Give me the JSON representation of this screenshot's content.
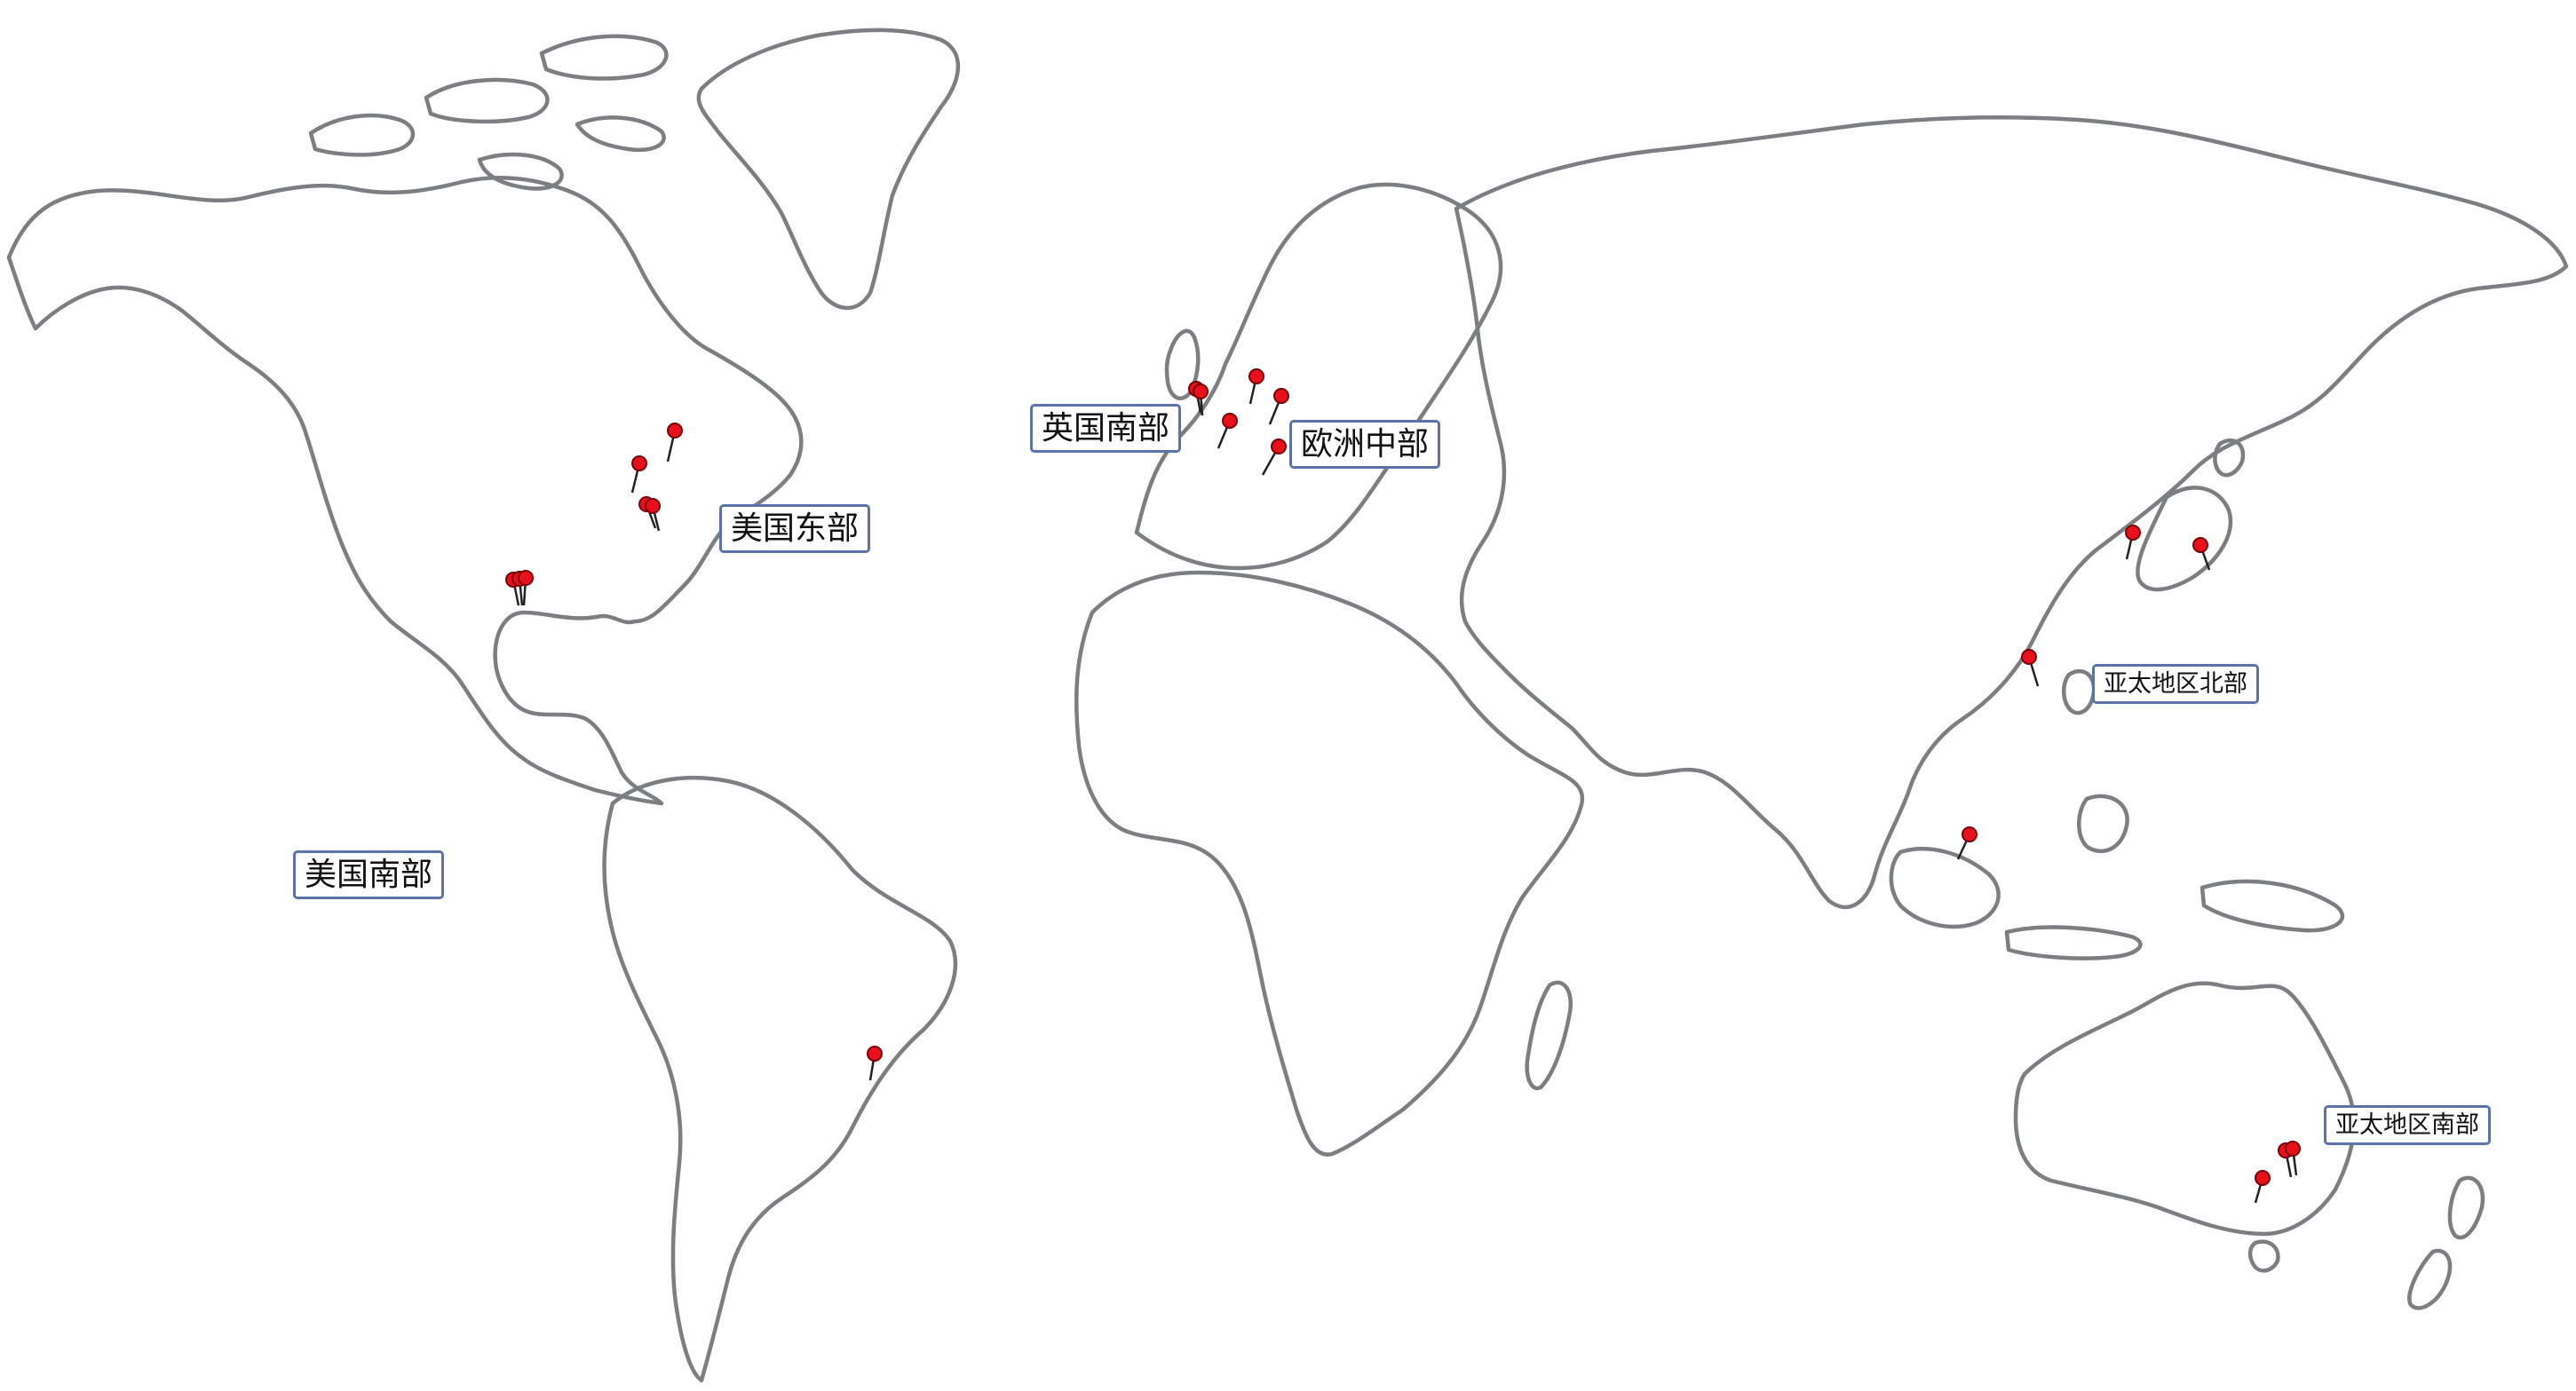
{
  "map": {
    "region_labels": {
      "us_east": "美国东部",
      "us_south": "美国南部",
      "uk_south": "英国南部",
      "europe_central": "欧洲中部",
      "apac_north": "亚太地区北部",
      "apac_south": "亚太地区南部"
    },
    "colors": {
      "land_outline": "#7b7f82",
      "pin": "#e8101a",
      "label_border": "#5b72ad",
      "background": "#ffffff"
    },
    "pin_icon": "map-pin-icon"
  }
}
